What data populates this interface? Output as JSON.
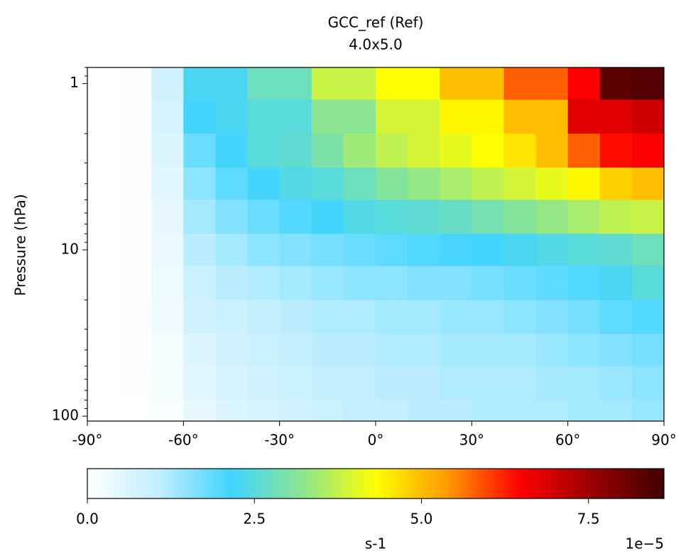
{
  "chart_data": {
    "type": "heatmap",
    "title": "GCC_ref (Ref)",
    "subtitle": "4.0x5.0",
    "y_label": "Pressure (hPa)",
    "x_edges": [
      -90,
      -80,
      -70,
      -60,
      -50,
      -40,
      -30,
      -20,
      -10,
      0,
      10,
      20,
      30,
      40,
      50,
      60,
      70,
      80,
      90
    ],
    "y_edges": [
      0.8,
      1.25,
      2,
      3.2,
      5,
      8,
      12.5,
      20,
      32,
      50,
      80,
      107
    ],
    "values": [
      [
        0,
        0.05,
        0.8,
        2.3,
        2.3,
        2.8,
        2.8,
        3.8,
        3.8,
        4.3,
        4.3,
        5.0,
        5.0,
        5.8,
        5.8,
        6.5,
        8.3,
        8.4
      ],
      [
        0,
        0.05,
        0.7,
        2.2,
        2.3,
        2.5,
        2.5,
        3.2,
        3.2,
        3.9,
        3.9,
        4.4,
        4.4,
        5.0,
        5.0,
        6.8,
        6.8,
        7.0
      ],
      [
        0,
        0.05,
        0.6,
        1.8,
        2.2,
        2.5,
        2.6,
        3.0,
        3.4,
        3.7,
        3.9,
        4.1,
        4.3,
        4.6,
        5.0,
        5.8,
        6.4,
        6.5
      ],
      [
        0,
        0.05,
        0.5,
        1.5,
        1.9,
        2.2,
        2.4,
        2.5,
        2.8,
        3.1,
        3.3,
        3.5,
        3.7,
        3.9,
        4.1,
        4.4,
        4.8,
        5.0
      ],
      [
        0,
        0.05,
        0.4,
        1.3,
        1.6,
        1.8,
        2.0,
        2.2,
        2.4,
        2.5,
        2.6,
        2.7,
        2.9,
        3.1,
        3.3,
        3.5,
        3.7,
        3.8
      ],
      [
        0,
        0.05,
        0.35,
        1.1,
        1.3,
        1.5,
        1.6,
        1.7,
        1.8,
        1.9,
        2.0,
        2.1,
        2.2,
        2.3,
        2.4,
        2.5,
        2.6,
        2.8
      ],
      [
        0,
        0.05,
        0.3,
        0.9,
        1.1,
        1.2,
        1.3,
        1.4,
        1.5,
        1.5,
        1.6,
        1.6,
        1.7,
        1.8,
        1.9,
        2.0,
        2.3,
        2.5
      ],
      [
        0,
        0.05,
        0.25,
        0.8,
        0.9,
        1.0,
        1.1,
        1.2,
        1.2,
        1.3,
        1.3,
        1.4,
        1.4,
        1.5,
        1.6,
        1.7,
        1.9,
        2.0
      ],
      [
        0,
        0.04,
        0.2,
        0.6,
        0.8,
        0.9,
        1.0,
        1.1,
        1.1,
        1.2,
        1.2,
        1.3,
        1.3,
        1.3,
        1.4,
        1.5,
        1.6,
        1.7
      ],
      [
        0,
        0.03,
        0.15,
        0.5,
        0.7,
        0.8,
        0.9,
        1.0,
        1.0,
        1.1,
        1.1,
        1.2,
        1.2,
        1.2,
        1.3,
        1.3,
        1.4,
        1.5
      ],
      [
        0,
        0.02,
        0.1,
        0.4,
        0.6,
        0.7,
        0.8,
        0.9,
        1.0,
        1.0,
        1.1,
        1.1,
        1.2,
        1.2,
        1.2,
        1.3,
        1.3,
        1.4
      ]
    ],
    "xlim": [
      -90,
      90
    ],
    "xticks": [
      {
        "value": -90,
        "label": "-90°"
      },
      {
        "value": -60,
        "label": "-60°"
      },
      {
        "value": -30,
        "label": "-30°"
      },
      {
        "value": 0,
        "label": "0°"
      },
      {
        "value": 30,
        "label": "30°"
      },
      {
        "value": 60,
        "label": "60°"
      },
      {
        "value": 90,
        "label": "90°"
      }
    ],
    "ylim": [
      107,
      0.8
    ],
    "yticks": [
      1,
      10,
      100
    ],
    "y_log": true,
    "colorbar": {
      "label": "s-1",
      "offset_label": "1e−5",
      "lim": [
        0,
        8.63
      ],
      "ticks": [
        {
          "value": 0,
          "label": "0.0"
        },
        2.5,
        {
          "value": 5,
          "label": "5.0"
        },
        7.5
      ],
      "colors": [
        "#ffffff",
        "#bfeeff",
        "#40d4ff",
        "#8ee68e",
        "#ffff00",
        "#ff9900",
        "#ff0000",
        "#990000",
        "#400000"
      ]
    }
  }
}
